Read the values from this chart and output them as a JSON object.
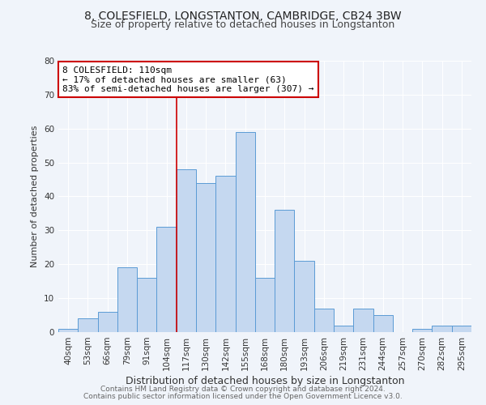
{
  "title1": "8, COLESFIELD, LONGSTANTON, CAMBRIDGE, CB24 3BW",
  "title2": "Size of property relative to detached houses in Longstanton",
  "xlabel": "Distribution of detached houses by size in Longstanton",
  "ylabel": "Number of detached properties",
  "categories": [
    "40sqm",
    "53sqm",
    "66sqm",
    "79sqm",
    "91sqm",
    "104sqm",
    "117sqm",
    "130sqm",
    "142sqm",
    "155sqm",
    "168sqm",
    "180sqm",
    "193sqm",
    "206sqm",
    "219sqm",
    "231sqm",
    "244sqm",
    "257sqm",
    "270sqm",
    "282sqm",
    "295sqm"
  ],
  "values": [
    1,
    4,
    6,
    19,
    16,
    31,
    48,
    44,
    46,
    59,
    16,
    36,
    21,
    7,
    2,
    7,
    5,
    0,
    1,
    2,
    2
  ],
  "bar_color": "#c5d8f0",
  "bar_edge_color": "#5b9bd5",
  "vline_x_index": 5.5,
  "vline_color": "#cc0000",
  "annotation_text": "8 COLESFIELD: 110sqm\n← 17% of detached houses are smaller (63)\n83% of semi-detached houses are larger (307) →",
  "annotation_box_color": "#ffffff",
  "annotation_box_edge": "#cc0000",
  "ylim": [
    0,
    80
  ],
  "yticks": [
    0,
    10,
    20,
    30,
    40,
    50,
    60,
    70,
    80
  ],
  "footer1": "Contains HM Land Registry data © Crown copyright and database right 2024.",
  "footer2": "Contains public sector information licensed under the Open Government Licence v3.0.",
  "background_color": "#f0f4fa",
  "grid_color": "#ffffff",
  "title1_fontsize": 10,
  "title2_fontsize": 9,
  "xlabel_fontsize": 9,
  "ylabel_fontsize": 8,
  "tick_fontsize": 7.5,
  "footer_fontsize": 6.5,
  "annotation_fontsize": 8
}
